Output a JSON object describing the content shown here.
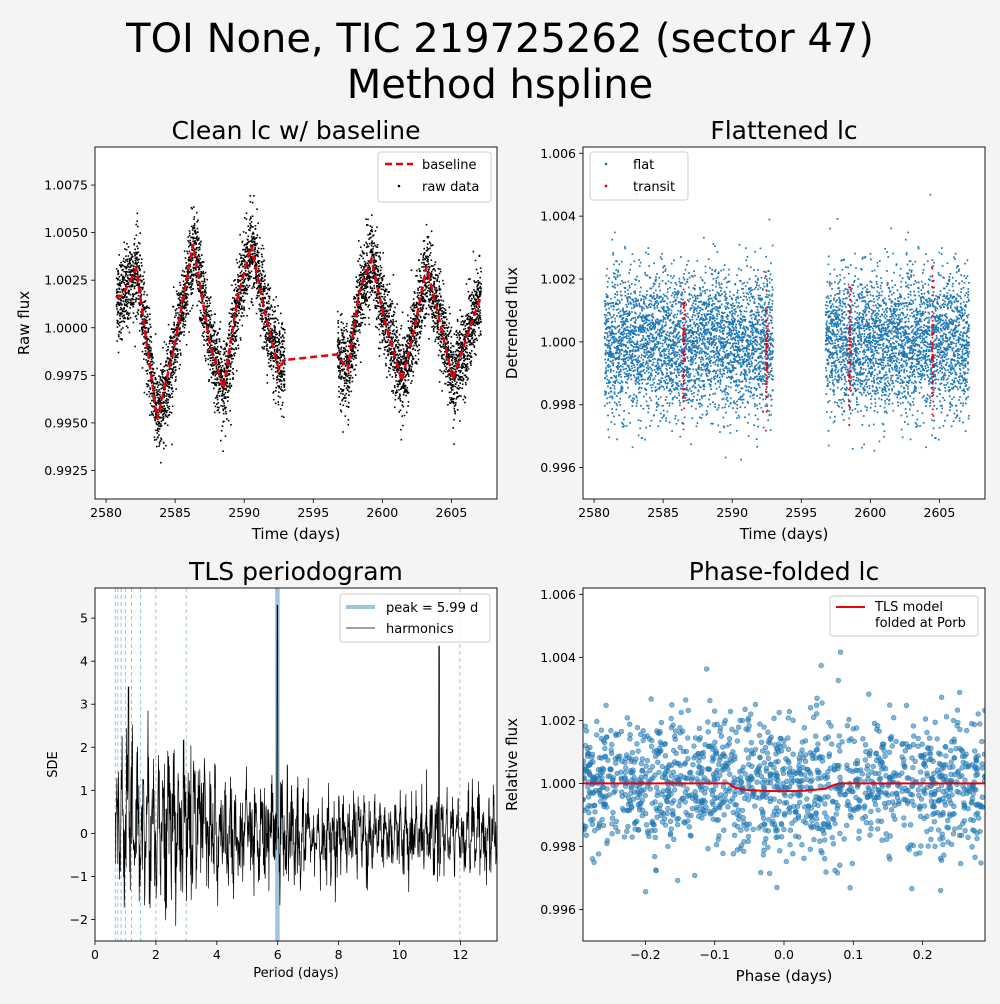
{
  "figure": {
    "title_line1": "TOI None, TIC 219725262 (sector 47)",
    "title_line2": "Method hspline"
  },
  "chart_data": [
    {
      "type": "scatter",
      "title": "Clean lc w/ baseline",
      "xlabel": "Time (days)",
      "ylabel": "Raw flux",
      "xlim": [
        2579.2,
        2608.3
      ],
      "ylim": [
        0.991,
        1.0095
      ],
      "xticks": [
        2580,
        2585,
        2590,
        2595,
        2600,
        2605
      ],
      "yticks": [
        0.9925,
        0.995,
        0.9975,
        1.0,
        1.0025,
        1.005,
        1.0075
      ],
      "ytick_labels": [
        "0.9925",
        "0.9950",
        "0.9975",
        "1.0000",
        "1.0025",
        "1.0050",
        "1.0075"
      ],
      "legend": [
        "baseline",
        "raw data"
      ],
      "legend_loc": "upper right",
      "segments": [
        [
          2580.7,
          2592.9
        ],
        [
          2596.7,
          2607.1
        ]
      ],
      "noise": 0.0011,
      "series": [
        {
          "name": "baseline",
          "color": "#e8000b",
          "x": [
            2580.7,
            2581.2,
            2582.2,
            2583.7,
            2585.0,
            2586.3,
            2587.5,
            2588.5,
            2589.5,
            2590.5,
            2591.5,
            2592.5,
            2592.9,
            2596.7,
            2597.5,
            2598.3,
            2599.2,
            2600.2,
            2601.4,
            2602.3,
            2603.2,
            2604.1,
            2605.1,
            2606.1,
            2607.1
          ],
          "y": [
            1.0016,
            1.0017,
            1.0031,
            0.9952,
            0.9992,
            1.0044,
            0.9992,
            0.9968,
            1.0015,
            1.0043,
            1.0008,
            0.9978,
            0.9983,
            0.9986,
            0.9978,
            1.0018,
            1.0036,
            1.0003,
            0.9972,
            0.9999,
            1.0032,
            1.0005,
            0.9973,
            0.9995,
            1.0016
          ]
        },
        {
          "name": "raw data",
          "color": "#000000",
          "points": "simulated around baseline"
        }
      ]
    },
    {
      "type": "scatter",
      "title": "Flattened lc",
      "xlabel": "Time (days)",
      "ylabel": "Detrended flux",
      "xlim": [
        2579.2,
        2608.3
      ],
      "ylim": [
        0.995,
        1.0062
      ],
      "xticks": [
        2580,
        2585,
        2590,
        2595,
        2600,
        2605
      ],
      "yticks": [
        0.996,
        0.998,
        1.0,
        1.002,
        1.004,
        1.006
      ],
      "ytick_labels": [
        "0.996",
        "0.998",
        "1.000",
        "1.002",
        "1.004",
        "1.006"
      ],
      "legend": [
        "flat",
        "transit"
      ],
      "legend_loc": "upper left",
      "segments": [
        [
          2580.7,
          2592.9
        ],
        [
          2596.7,
          2607.1
        ]
      ],
      "transit_times": [
        2586.45,
        2592.45,
        2598.45,
        2604.45
      ],
      "transit_width": 0.15,
      "noise": 0.0011,
      "series": [
        {
          "name": "flat",
          "color": "#1f77b4"
        },
        {
          "name": "transit",
          "color": "#e8000b"
        }
      ]
    },
    {
      "type": "line",
      "title": "TLS periodogram",
      "xlabel": "Period (days)",
      "ylabel": "SDE",
      "xlim": [
        0,
        13.2
      ],
      "ylim": [
        -2.5,
        5.7
      ],
      "xticks": [
        0,
        2,
        4,
        6,
        8,
        10,
        12
      ],
      "yticks": [
        -2,
        -1,
        0,
        1,
        2,
        3,
        4,
        5
      ],
      "ytick_labels": [
        "−2",
        "−1",
        "0",
        "1",
        "2",
        "3",
        "4",
        "5"
      ],
      "legend": [
        "peak = 5.99 d",
        "harmonics"
      ],
      "legend_loc": "upper right",
      "peak_period": 5.99,
      "peak_sde": 5.3,
      "harmonics": [
        0.6656,
        0.7488,
        0.8557,
        0.9983,
        1.198,
        1.4975,
        1.9967,
        2.995,
        11.98
      ],
      "secondary_peak": {
        "x": 11.3,
        "y": 4.35
      },
      "series": [
        {
          "name": "peak = 5.99 d",
          "color": "#9ec5dc"
        },
        {
          "name": "harmonics",
          "color": "#000000"
        }
      ]
    },
    {
      "type": "scatter",
      "title": "Phase-folded lc",
      "xlabel": "Phase (days)",
      "ylabel": "Relative flux",
      "xlim": [
        -0.29,
        0.29
      ],
      "ylim": [
        0.995,
        1.0062
      ],
      "xticks": [
        -0.2,
        -0.1,
        0.0,
        0.1,
        0.2
      ],
      "xtick_labels": [
        "−0.2",
        "−0.1",
        "0.0",
        "0.1",
        "0.2"
      ],
      "yticks": [
        0.996,
        0.998,
        1.0,
        1.002,
        1.004,
        1.006
      ],
      "ytick_labels": [
        "0.996",
        "0.998",
        "1.000",
        "1.002",
        "1.004",
        "1.006"
      ],
      "legend": [
        "TLS model\nfolded at Porb"
      ],
      "legend_loc": "upper right",
      "noise": 0.0011,
      "series": [
        {
          "name": "TLS model folded at Porb",
          "color": "#e8000b",
          "x": [
            -0.29,
            -0.08,
            -0.07,
            -0.05,
            -0.02,
            0.0,
            0.03,
            0.06,
            0.07,
            0.08,
            0.29
          ],
          "y": [
            1.0,
            1.0,
            0.99985,
            0.99978,
            0.99976,
            0.99975,
            0.99977,
            0.99983,
            0.99993,
            1.0,
            1.0
          ]
        },
        {
          "name": "data",
          "color": "#1f77b4"
        }
      ]
    }
  ]
}
